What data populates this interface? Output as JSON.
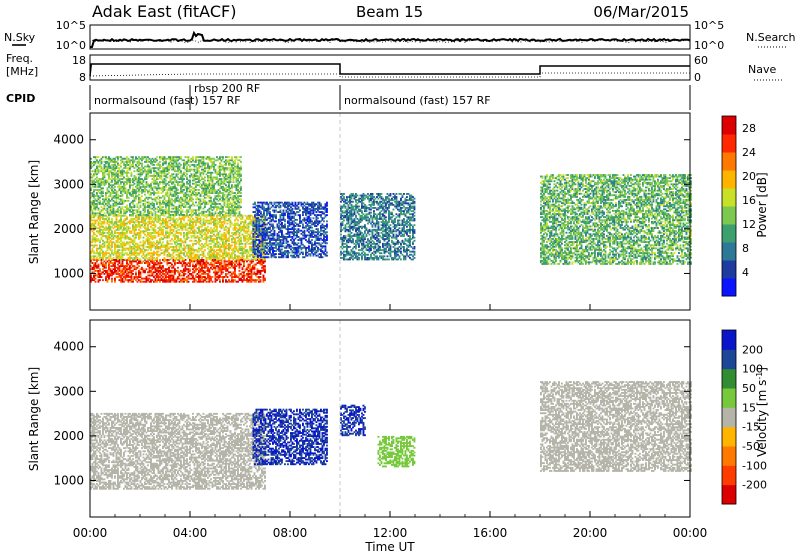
{
  "header": {
    "station": "Adak East (fitACF)",
    "beam": "Beam 15",
    "date": "06/Mar/2015"
  },
  "top_panel": {
    "left_label": "N.Sky",
    "right_label": "N.Search",
    "left_ticks": [
      "10^5",
      "10^0"
    ],
    "right_ticks": [
      "10^5",
      "10^0"
    ]
  },
  "freq_panel": {
    "left_label_1": "Freq.",
    "left_label_2": "[MHz]",
    "right_label": "Nave",
    "left_ticks": [
      "18",
      "8"
    ],
    "right_ticks": [
      "60",
      "0"
    ]
  },
  "cpid_panel": {
    "label": "CPID",
    "entries": [
      "normalsound (fast) 157 RF",
      "rbsp 200 RF",
      "normalsound (fast) 157 RF"
    ]
  },
  "time_axis": {
    "label": "Time UT",
    "ticks": [
      "00:00",
      "04:00",
      "08:00",
      "12:00",
      "16:00",
      "20:00",
      "00:00"
    ]
  },
  "colors": {
    "power": [
      "#0a14ff",
      "#1e3ca0",
      "#2d7896",
      "#3ca06e",
      "#7dc850",
      "#c8e128",
      "#ffb400",
      "#ff7800",
      "#ff2800",
      "#dc0000"
    ],
    "velocity": [
      "#dc0000",
      "#ff3c00",
      "#ff7800",
      "#ffb400",
      "#b4b4a8",
      "#78c83c",
      "#328c32",
      "#1e4696",
      "#0a14c8"
    ]
  },
  "chart_data": [
    {
      "type": "heatmap",
      "title": "",
      "xlabel": "",
      "ylabel": "Slant Range [km]",
      "xlim": [
        0,
        24
      ],
      "ylim": [
        180,
        4600
      ],
      "yticks": [
        1000,
        2000,
        3000,
        4000
      ],
      "colorbar_label": "Power [dB]",
      "colorbar_ticks": [
        4,
        8,
        12,
        16,
        20,
        24,
        28
      ],
      "colorbar_range": [
        0,
        30
      ],
      "echo_regions": [
        {
          "t_start": 0,
          "t_end": 7,
          "range_low": 800,
          "range_high": 1300,
          "value": 26
        },
        {
          "t_start": 0,
          "t_end": 7,
          "range_low": 1300,
          "range_high": 2300,
          "value": 17
        },
        {
          "t_start": 0,
          "t_end": 6,
          "range_low": 2300,
          "range_high": 3600,
          "value": 13
        },
        {
          "t_start": 6.5,
          "t_end": 9.5,
          "range_low": 1350,
          "range_high": 2600,
          "value": 5
        },
        {
          "t_start": 10,
          "t_end": 13,
          "range_low": 1300,
          "range_high": 2800,
          "value": 8
        },
        {
          "t_start": 18,
          "t_end": 24,
          "range_low": 1200,
          "range_high": 3200,
          "value": 12
        }
      ]
    },
    {
      "type": "heatmap",
      "title": "",
      "xlabel": "Time UT",
      "ylabel": "Slant Range [km]",
      "xlim": [
        0,
        24
      ],
      "ylim": [
        180,
        4600
      ],
      "yticks": [
        1000,
        2000,
        3000,
        4000
      ],
      "colorbar_label": "Velocity [m s^-1]",
      "colorbar_ticks": [
        200,
        100,
        50,
        15,
        -15,
        -50,
        -100,
        -200
      ],
      "colorbar_range": [
        -250,
        250
      ],
      "echo_regions": [
        {
          "t_start": 0,
          "t_end": 7,
          "range_low": 800,
          "range_high": 2500,
          "value": 0
        },
        {
          "t_start": 6.5,
          "t_end": 9.5,
          "range_low": 1350,
          "range_high": 2600,
          "value": 200
        },
        {
          "t_start": 10,
          "t_end": 11,
          "range_low": 2000,
          "range_high": 2700,
          "value": 200
        },
        {
          "t_start": 11.5,
          "t_end": 13,
          "range_low": 1300,
          "range_high": 2000,
          "value": 30
        },
        {
          "t_start": 18,
          "t_end": 24,
          "range_low": 1200,
          "range_high": 3200,
          "value": 0
        }
      ]
    }
  ]
}
